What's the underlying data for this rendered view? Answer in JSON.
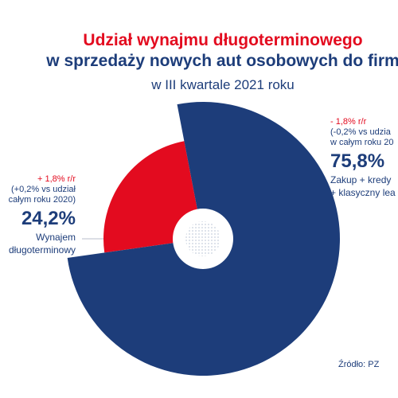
{
  "title": {
    "line1": "Udział wynajmu długoterminowego",
    "line2": "w sprzedaży nowych aut osobowych do firm",
    "subtitle": "w III kwartale 2021 roku"
  },
  "source": "Źródło: PZ",
  "colors": {
    "red": "#e30b1f",
    "navy": "#1d3d7a",
    "navy_dark": "#1b3468"
  },
  "chart_data": {
    "type": "pie",
    "slices": [
      {
        "value": 24.2,
        "label": "24,2%",
        "desc_lines": [
          "Wynajem",
          "długoterminowy"
        ],
        "change": "+ 1,8% r/r",
        "note_lines": [
          "(+0,2% vs udział",
          "całym roku 2020)"
        ],
        "color": "#e30b1f"
      },
      {
        "value": 75.8,
        "label": "75,8%",
        "desc_lines": [
          "Zakup + kredy",
          "+ klasyczny lea"
        ],
        "change": "- 1,8% r/r",
        "note_lines": [
          "(-0,2% vs udzia",
          "w całym roku 20"
        ],
        "color": "#1d3d7a"
      }
    ]
  }
}
